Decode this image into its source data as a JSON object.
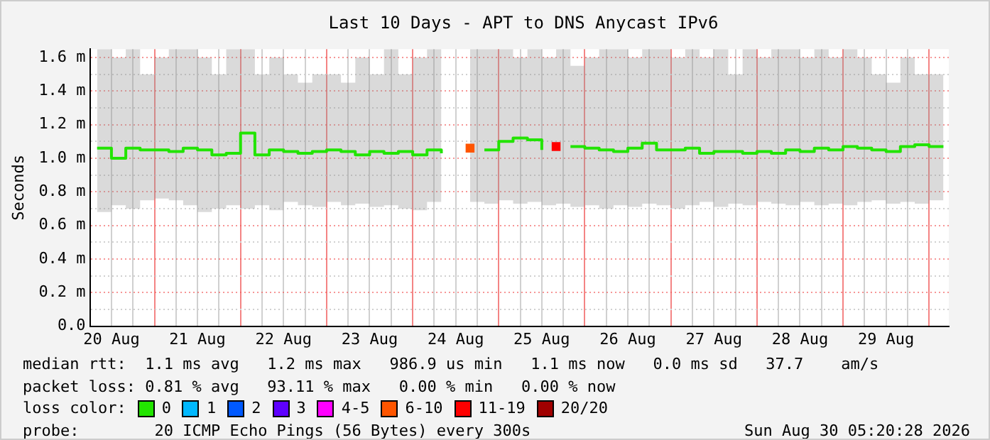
{
  "chart_data": {
    "type": "step",
    "title": "Last 10 Days - APT to DNS Anycast IPv6",
    "ylabel": "Seconds",
    "legend_title": "loss color:",
    "legend": "bottom",
    "grid": true,
    "marker": "none",
    "x": [
      "2026-08-20T08:00",
      "2026-08-20T12:00",
      "2026-08-20T16:00",
      "2026-08-20T20:00",
      "2026-08-21T00:00",
      "2026-08-21T04:00",
      "2026-08-21T08:00",
      "2026-08-21T12:00",
      "2026-08-21T16:00",
      "2026-08-21T20:00",
      "2026-08-22T00:00",
      "2026-08-22T04:00",
      "2026-08-22T08:00",
      "2026-08-22T12:00",
      "2026-08-22T16:00",
      "2026-08-22T20:00",
      "2026-08-23T00:00",
      "2026-08-23T04:00",
      "2026-08-23T08:00",
      "2026-08-23T12:00",
      "2026-08-23T16:00",
      "2026-08-23T20:00",
      "2026-08-24T00:00",
      "2026-08-24T04:00",
      "2026-08-24T08:00",
      "2026-08-24T12:00",
      "2026-08-24T16:00",
      "2026-08-24T20:00",
      "2026-08-25T00:00",
      "2026-08-25T04:00",
      "2026-08-25T08:00",
      "2026-08-25T12:00",
      "2026-08-25T16:00",
      "2026-08-25T20:00",
      "2026-08-26T00:00",
      "2026-08-26T04:00",
      "2026-08-26T08:00",
      "2026-08-26T12:00",
      "2026-08-26T16:00",
      "2026-08-26T20:00",
      "2026-08-27T00:00",
      "2026-08-27T04:00",
      "2026-08-27T08:00",
      "2026-08-27T12:00",
      "2026-08-27T16:00",
      "2026-08-27T20:00",
      "2026-08-28T00:00",
      "2026-08-28T04:00",
      "2026-08-28T08:00",
      "2026-08-28T12:00",
      "2026-08-28T16:00",
      "2026-08-28T20:00",
      "2026-08-29T00:00",
      "2026-08-29T04:00",
      "2026-08-29T08:00",
      "2026-08-29T12:00",
      "2026-08-29T16:00",
      "2026-08-29T20:00",
      "2026-08-30T00:00",
      "2026-08-30T04:00"
    ],
    "xlim": [
      "2026-08-20T06:00",
      "2026-08-30T05:30"
    ],
    "xticks": [
      {
        "value": "2026-08-20T12:00",
        "label": "20 Aug"
      },
      {
        "value": "2026-08-20T18:00",
        "label": null
      },
      {
        "value": "2026-08-21T00:00",
        "label": null
      },
      {
        "value": "2026-08-21T06:00",
        "label": null
      },
      {
        "value": "2026-08-21T12:00",
        "label": "21 Aug"
      },
      {
        "value": "2026-08-21T18:00",
        "label": null
      },
      {
        "value": "2026-08-22T00:00",
        "label": null
      },
      {
        "value": "2026-08-22T06:00",
        "label": null
      },
      {
        "value": "2026-08-22T12:00",
        "label": "22 Aug"
      },
      {
        "value": "2026-08-22T18:00",
        "label": null
      },
      {
        "value": "2026-08-23T00:00",
        "label": null
      },
      {
        "value": "2026-08-23T06:00",
        "label": null
      },
      {
        "value": "2026-08-23T12:00",
        "label": "23 Aug"
      },
      {
        "value": "2026-08-23T18:00",
        "label": null
      },
      {
        "value": "2026-08-24T00:00",
        "label": null
      },
      {
        "value": "2026-08-24T06:00",
        "label": null
      },
      {
        "value": "2026-08-24T12:00",
        "label": "24 Aug"
      },
      {
        "value": "2026-08-24T18:00",
        "label": null
      },
      {
        "value": "2026-08-25T00:00",
        "label": null
      },
      {
        "value": "2026-08-25T06:00",
        "label": null
      },
      {
        "value": "2026-08-25T12:00",
        "label": "25 Aug"
      },
      {
        "value": "2026-08-25T18:00",
        "label": null
      },
      {
        "value": "2026-08-26T00:00",
        "label": null
      },
      {
        "value": "2026-08-26T06:00",
        "label": null
      },
      {
        "value": "2026-08-26T12:00",
        "label": "26 Aug"
      },
      {
        "value": "2026-08-26T18:00",
        "label": null
      },
      {
        "value": "2026-08-27T00:00",
        "label": null
      },
      {
        "value": "2026-08-27T06:00",
        "label": null
      },
      {
        "value": "2026-08-27T12:00",
        "label": "27 Aug"
      },
      {
        "value": "2026-08-27T18:00",
        "label": null
      },
      {
        "value": "2026-08-28T00:00",
        "label": null
      },
      {
        "value": "2026-08-28T06:00",
        "label": null
      },
      {
        "value": "2026-08-28T12:00",
        "label": "28 Aug"
      },
      {
        "value": "2026-08-28T18:00",
        "label": null
      },
      {
        "value": "2026-08-29T00:00",
        "label": null
      },
      {
        "value": "2026-08-29T06:00",
        "label": null
      },
      {
        "value": "2026-08-29T12:00",
        "label": "29 Aug"
      },
      {
        "value": "2026-08-29T18:00",
        "label": null
      },
      {
        "value": "2026-08-30T00:00",
        "label": null
      }
    ],
    "ylim": [
      0,
      1.65
    ],
    "yticks": [
      {
        "value": 0,
        "label": "0.0"
      },
      {
        "value": 0.1,
        "label": null
      },
      {
        "value": 0.2,
        "label": "0.2 m"
      },
      {
        "value": 0.3,
        "label": null
      },
      {
        "value": 0.4,
        "label": "0.4 m"
      },
      {
        "value": 0.5,
        "label": null
      },
      {
        "value": 0.6,
        "label": "0.6 m"
      },
      {
        "value": 0.7,
        "label": null
      },
      {
        "value": 0.8,
        "label": "0.8 m"
      },
      {
        "value": 0.9,
        "label": null
      },
      {
        "value": 1.0,
        "label": "1.0 m"
      },
      {
        "value": 1.1,
        "label": null
      },
      {
        "value": 1.2,
        "label": "1.2 m"
      },
      {
        "value": 1.3,
        "label": null
      },
      {
        "value": 1.4,
        "label": "1.4 m"
      },
      {
        "value": 1.5,
        "label": null
      },
      {
        "value": 1.6,
        "label": "1.6 m"
      }
    ],
    "series": [
      {
        "name": "0",
        "color": "#22e400",
        "values": [
          1.06,
          1.0,
          1.06,
          1.05,
          1.05,
          1.04,
          1.06,
          1.05,
          1.02,
          1.03,
          1.15,
          1.02,
          1.05,
          1.04,
          1.03,
          1.04,
          1.05,
          1.04,
          1.02,
          1.04,
          1.03,
          1.04,
          1.02,
          1.05,
          1.03,
          null,
          null,
          1.05,
          1.1,
          1.12,
          1.11,
          1.05,
          null,
          1.07,
          1.06,
          1.05,
          1.04,
          1.06,
          1.09,
          1.05,
          1.05,
          1.06,
          1.03,
          1.04,
          1.04,
          1.03,
          1.04,
          1.03,
          1.05,
          1.04,
          1.06,
          1.05,
          1.07,
          1.06,
          1.05,
          1.04,
          1.07,
          1.08,
          1.07,
          1.07
        ],
        "lower": [
          0.68,
          0.72,
          0.7,
          0.75,
          0.76,
          0.75,
          0.72,
          0.68,
          0.7,
          0.72,
          0.7,
          0.72,
          0.69,
          0.74,
          0.72,
          0.71,
          0.74,
          0.72,
          0.73,
          0.71,
          0.72,
          0.7,
          0.69,
          0.74,
          0.73,
          null,
          0.74,
          0.73,
          0.75,
          0.73,
          0.74,
          0.72,
          0.73,
          0.71,
          0.72,
          0.7,
          0.72,
          0.71,
          0.73,
          0.72,
          0.7,
          0.72,
          0.74,
          0.71,
          0.73,
          0.72,
          0.74,
          0.73,
          0.72,
          0.74,
          0.72,
          0.73,
          0.72,
          0.74,
          0.75,
          0.73,
          0.74,
          0.73,
          0.75,
          0.76
        ],
        "upper": [
          1.65,
          1.6,
          1.65,
          1.5,
          1.6,
          1.65,
          1.65,
          1.6,
          1.5,
          1.65,
          1.65,
          1.5,
          1.6,
          1.5,
          1.45,
          1.5,
          1.5,
          1.45,
          1.6,
          1.5,
          1.65,
          1.5,
          1.6,
          1.65,
          1.6,
          null,
          1.65,
          1.65,
          1.65,
          1.6,
          1.65,
          1.6,
          1.65,
          1.55,
          1.6,
          1.65,
          1.65,
          1.6,
          1.65,
          1.65,
          1.6,
          1.65,
          1.6,
          1.65,
          1.5,
          1.65,
          1.6,
          1.65,
          1.65,
          1.6,
          1.65,
          1.6,
          1.65,
          1.6,
          1.5,
          1.45,
          1.6,
          1.5,
          1.5,
          1.45
        ]
      },
      {
        "name": "1",
        "color": "#00b8ff",
        "values": [
          null,
          null,
          null,
          null,
          null,
          null,
          null,
          null,
          null,
          null,
          null,
          null,
          null,
          null,
          null,
          null,
          null,
          null,
          null,
          null,
          null,
          null,
          null,
          null,
          null,
          null,
          null,
          null,
          null,
          null,
          null,
          null,
          null,
          null,
          null,
          null,
          null,
          null,
          null,
          null,
          null,
          null,
          null,
          null,
          null,
          null,
          null,
          null,
          null,
          null,
          null,
          null,
          null,
          null,
          null,
          null,
          null,
          null,
          null,
          null
        ]
      },
      {
        "name": "2",
        "color": "#0059ff",
        "values": [
          null,
          null,
          null,
          null,
          null,
          null,
          null,
          null,
          null,
          null,
          null,
          null,
          null,
          null,
          null,
          null,
          null,
          null,
          null,
          null,
          null,
          null,
          null,
          null,
          null,
          null,
          null,
          null,
          null,
          null,
          null,
          null,
          null,
          null,
          null,
          null,
          null,
          null,
          null,
          null,
          null,
          null,
          null,
          null,
          null,
          null,
          null,
          null,
          null,
          null,
          null,
          null,
          null,
          null,
          null,
          null,
          null,
          null,
          null,
          null
        ]
      },
      {
        "name": "3",
        "color": "#5e00ff",
        "values": [
          null,
          null,
          null,
          null,
          null,
          null,
          null,
          null,
          null,
          null,
          null,
          null,
          null,
          null,
          null,
          null,
          null,
          null,
          null,
          null,
          null,
          null,
          null,
          null,
          null,
          null,
          null,
          null,
          null,
          null,
          null,
          null,
          null,
          null,
          null,
          null,
          null,
          null,
          null,
          null,
          null,
          null,
          null,
          null,
          null,
          null,
          null,
          null,
          null,
          null,
          null,
          null,
          null,
          null,
          null,
          null,
          null,
          null,
          null,
          null
        ]
      },
      {
        "name": "4-5",
        "color": "#ff00ff",
        "values": [
          null,
          null,
          null,
          null,
          null,
          null,
          null,
          null,
          null,
          null,
          null,
          null,
          null,
          null,
          null,
          null,
          null,
          null,
          null,
          null,
          null,
          null,
          null,
          null,
          null,
          null,
          null,
          null,
          null,
          null,
          null,
          null,
          null,
          null,
          null,
          null,
          null,
          null,
          null,
          null,
          null,
          null,
          null,
          null,
          null,
          null,
          null,
          null,
          null,
          null,
          null,
          null,
          null,
          null,
          null,
          null,
          null,
          null,
          null,
          null
        ]
      },
      {
        "name": "6-10",
        "color": "#ff5500",
        "marker": "square",
        "x": [
          "2026-08-24T16:00"
        ],
        "values": [
          1.06
        ]
      },
      {
        "name": "11-19",
        "color": "#ff0000",
        "marker": "square",
        "x": [
          "2026-08-25T16:00"
        ],
        "values": [
          1.07
        ]
      },
      {
        "name": "20/20",
        "color": "#a10000",
        "values": [
          null,
          null,
          null,
          null,
          null,
          null,
          null,
          null,
          null,
          null,
          null,
          null,
          null,
          null,
          null,
          null,
          null,
          null,
          null,
          null,
          null,
          null,
          null,
          null,
          null,
          null,
          null,
          null,
          null,
          null,
          null,
          null,
          null,
          null,
          null,
          null,
          null,
          null,
          null,
          null,
          null,
          null,
          null,
          null,
          null,
          null,
          null,
          null,
          null,
          null,
          null,
          null,
          null,
          null,
          null,
          null,
          null,
          null,
          null,
          null
        ]
      }
    ],
    "annotations": [
      "median rtt:  1.1 ms avg   1.2 ms max   986.9 us min   1.1 ms now   0.0 ms sd   37.7    am/s",
      "packet loss: 0.81 % avg   93.11 % max   0.00 % min   0.00 % now",
      "probe:        20 ICMP Echo Pings (56 Bytes) every 300s",
      "Sun Aug 30 05:20:28 2026"
    ]
  }
}
